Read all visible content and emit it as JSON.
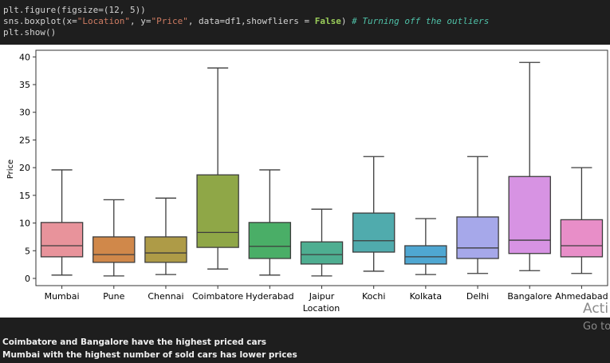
{
  "code": {
    "lines": [
      [
        "plt.figure(figsize=(12, 5))"
      ],
      [
        "sns.boxplot(x=",
        "\"Location\"",
        ", y=",
        "\"Price\"",
        ", data=df1,showfliers = ",
        "False",
        ") ",
        "# Turning off the outliers"
      ],
      [
        "plt.show()"
      ]
    ]
  },
  "chart_data": {
    "type": "box",
    "xlabel": "Location",
    "ylabel": "Price",
    "categories": [
      "Mumbai",
      "Pune",
      "Chennai",
      "Coimbatore",
      "Hyderabad",
      "Jaipur",
      "Kochi",
      "Kolkata",
      "Delhi",
      "Bangalore",
      "Ahmedabad"
    ],
    "boxes": [
      {
        "whisker_low": 0.6,
        "q1": 3.9,
        "median": 5.9,
        "q3": 10.1,
        "whisker_high": 19.6,
        "color": "#e8939b"
      },
      {
        "whisker_low": 0.45,
        "q1": 2.9,
        "median": 4.3,
        "q3": 7.5,
        "whisker_high": 14.2,
        "color": "#d0884a"
      },
      {
        "whisker_low": 0.7,
        "q1": 2.9,
        "median": 4.6,
        "q3": 7.5,
        "whisker_high": 14.5,
        "color": "#ae9b47"
      },
      {
        "whisker_low": 1.7,
        "q1": 5.6,
        "median": 8.3,
        "q3": 18.7,
        "whisker_high": 38,
        "color": "#8fa747"
      },
      {
        "whisker_low": 0.6,
        "q1": 3.6,
        "median": 5.8,
        "q3": 10.1,
        "whisker_high": 19.6,
        "color": "#4aae67"
      },
      {
        "whisker_low": 0.45,
        "q1": 2.6,
        "median": 4.3,
        "q3": 6.6,
        "whisker_high": 12.5,
        "color": "#4eae91"
      },
      {
        "whisker_low": 1.3,
        "q1": 4.75,
        "median": 6.8,
        "q3": 11.8,
        "whisker_high": 22,
        "color": "#50abad"
      },
      {
        "whisker_low": 0.7,
        "q1": 2.6,
        "median": 3.9,
        "q3": 5.9,
        "whisker_high": 10.8,
        "color": "#4fa7d2"
      },
      {
        "whisker_low": 0.9,
        "q1": 3.6,
        "median": 5.5,
        "q3": 11.1,
        "whisker_high": 22,
        "color": "#a6a8ea"
      },
      {
        "whisker_low": 1.4,
        "q1": 4.5,
        "median": 6.9,
        "q3": 18.4,
        "whisker_high": 39,
        "color": "#d793e3"
      },
      {
        "whisker_low": 0.9,
        "q1": 3.9,
        "median": 5.9,
        "q3": 10.6,
        "whisker_high": 20,
        "color": "#e88ec8"
      }
    ],
    "ylim": [
      -1.3,
      41.2
    ],
    "yticks": [
      0,
      5,
      10,
      15,
      20,
      25,
      30,
      35,
      40
    ]
  },
  "notes": [
    "Coimbatore and Bangalore have the highest priced cars",
    "Mumbai with the highest number of sold cars has lower prices"
  ],
  "watermark": [
    "Acti",
    "Go to"
  ]
}
